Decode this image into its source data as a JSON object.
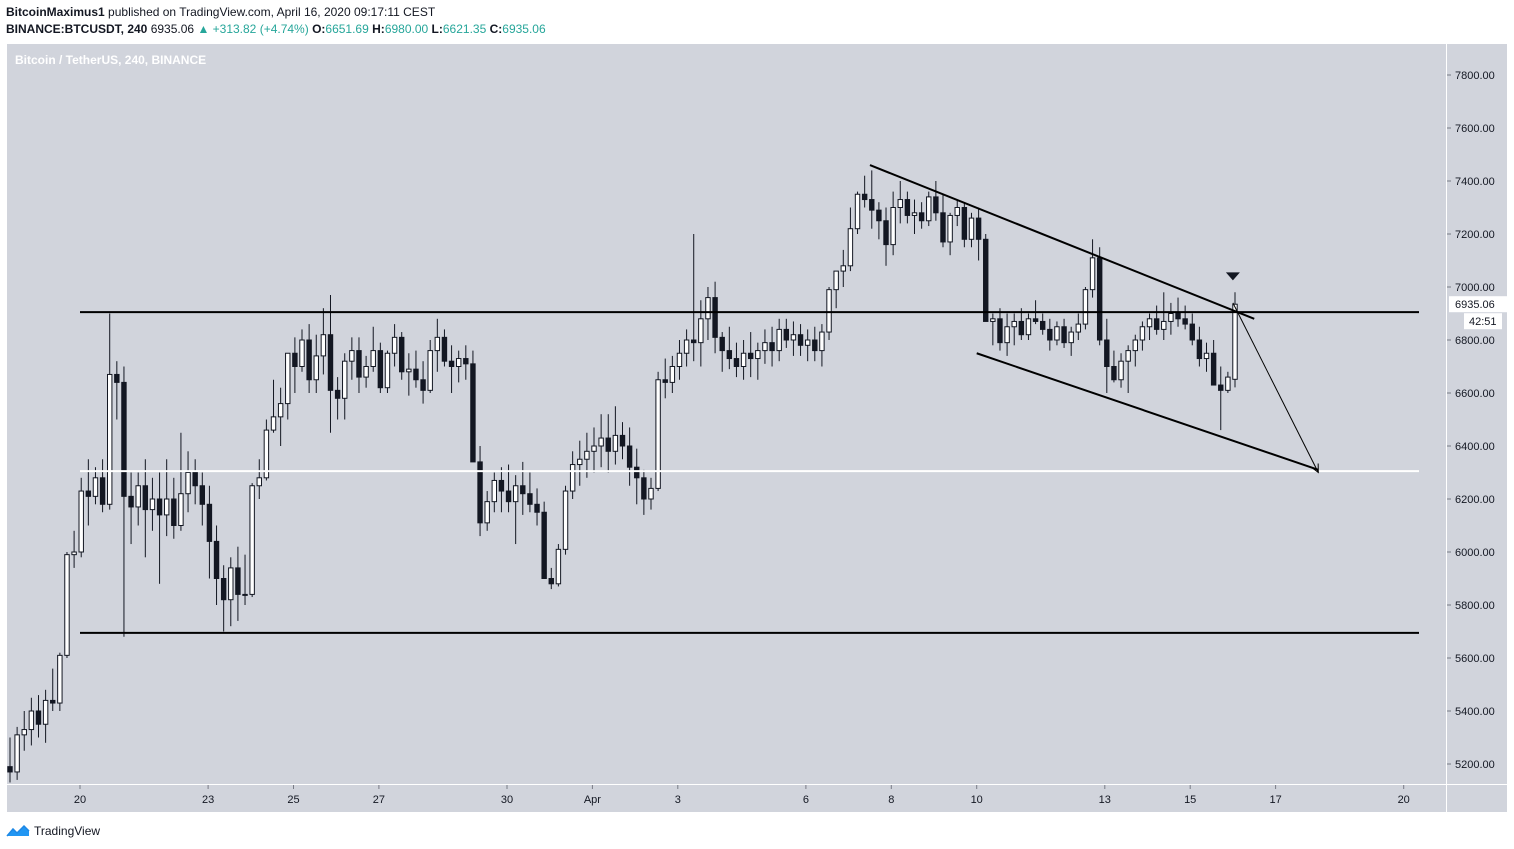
{
  "header": {
    "author": "BitcoinMaximus1",
    "published": "published on TradingView.com, April 16, 2020 09:17:11 CEST",
    "symbol": "BINANCE:BTCUSDT, 240",
    "last": "6935.06",
    "change": "▲ +313.82 (+4.74%)",
    "o_label": "O:",
    "o_val": "6651.69",
    "h_label": "H:",
    "h_val": "6980.00",
    "l_label": "L:",
    "l_val": "6621.35",
    "c_label": "C:",
    "c_val": "6935.06"
  },
  "footer": {
    "brand": "TradingView",
    "logo_icon": "tradingview-logo-icon"
  },
  "colors": {
    "pane_bg": "#d1d4dc",
    "up_body": "#ffffff",
    "down_body": "#131722",
    "accent": "#26a69a",
    "line": "#000000",
    "support_white": "#ffffff"
  },
  "chart_data": {
    "type": "candlestick",
    "title": "Bitcoin / TetherUS, 240, BINANCE",
    "xlabel": "",
    "ylabel": "",
    "ylim": [
      5100,
      7900
    ],
    "y_ticks": [
      "5200.00",
      "5400.00",
      "5600.00",
      "5800.00",
      "6000.00",
      "6200.00",
      "6400.00",
      "6600.00",
      "6800.00",
      "7000.00",
      "7200.00",
      "7400.00",
      "7600.00",
      "7800.00"
    ],
    "x_ticks": [
      {
        "t": 20,
        "label": "20"
      },
      {
        "t": 23,
        "label": "23"
      },
      {
        "t": 25,
        "label": "25"
      },
      {
        "t": 27,
        "label": "27"
      },
      {
        "t": 30,
        "label": "30"
      },
      {
        "t": 32,
        "label": "Apr"
      },
      {
        "t": 34,
        "label": "3"
      },
      {
        "t": 37,
        "label": "6"
      },
      {
        "t": 39,
        "label": "8"
      },
      {
        "t": 41,
        "label": "10"
      },
      {
        "t": 44,
        "label": "13"
      },
      {
        "t": 46,
        "label": "15"
      },
      {
        "t": 48,
        "label": "17"
      },
      {
        "t": 51,
        "label": "20"
      }
    ],
    "price_label": "6935.06",
    "countdown_label": "42:51",
    "series": [
      {
        "values": [
          [
            5190,
            5300,
            5130,
            5170
          ],
          [
            5170,
            5340,
            5140,
            5310
          ],
          [
            5310,
            5400,
            5250,
            5330
          ],
          [
            5330,
            5450,
            5270,
            5400
          ],
          [
            5400,
            5460,
            5300,
            5350
          ],
          [
            5350,
            5480,
            5280,
            5440
          ],
          [
            5440,
            5560,
            5400,
            5430
          ],
          [
            5430,
            5620,
            5400,
            5610
          ],
          [
            5610,
            6000,
            5600,
            5990
          ],
          [
            5990,
            6080,
            5940,
            6000
          ],
          [
            6000,
            6280,
            5980,
            6230
          ],
          [
            6230,
            6350,
            6100,
            6210
          ],
          [
            6210,
            6320,
            6180,
            6280
          ],
          [
            6280,
            6350,
            6150,
            6180
          ],
          [
            6180,
            6900,
            6160,
            6670
          ],
          [
            6670,
            6720,
            6500,
            6640
          ],
          [
            6640,
            6700,
            5680,
            6210
          ],
          [
            6210,
            6300,
            6030,
            6170
          ],
          [
            6170,
            6300,
            6100,
            6250
          ],
          [
            6250,
            6350,
            5980,
            6160
          ],
          [
            6160,
            6280,
            6080,
            6200
          ],
          [
            6200,
            6300,
            5880,
            6140
          ],
          [
            6140,
            6350,
            6060,
            6200
          ],
          [
            6200,
            6280,
            6050,
            6100
          ],
          [
            6100,
            6450,
            6080,
            6220
          ],
          [
            6220,
            6380,
            6150,
            6300
          ],
          [
            6300,
            6350,
            6180,
            6250
          ],
          [
            6250,
            6300,
            6100,
            6180
          ],
          [
            6180,
            6250,
            5900,
            6040
          ],
          [
            6040,
            6100,
            5800,
            5900
          ],
          [
            5900,
            5950,
            5700,
            5820
          ],
          [
            5820,
            5980,
            5720,
            5940
          ],
          [
            5940,
            6020,
            5740,
            5840
          ],
          [
            5840,
            5990,
            5800,
            5840
          ],
          [
            5840,
            6260,
            5830,
            6250
          ],
          [
            6250,
            6350,
            6200,
            6280
          ],
          [
            6280,
            6500,
            6270,
            6460
          ],
          [
            6460,
            6650,
            6450,
            6510
          ],
          [
            6510,
            6620,
            6400,
            6560
          ],
          [
            6560,
            6710,
            6500,
            6750
          ],
          [
            6750,
            6810,
            6600,
            6700
          ],
          [
            6700,
            6840,
            6680,
            6800
          ],
          [
            6800,
            6860,
            6600,
            6650
          ],
          [
            6650,
            6820,
            6600,
            6740
          ],
          [
            6740,
            6920,
            6670,
            6820
          ],
          [
            6820,
            6970,
            6450,
            6610
          ],
          [
            6610,
            6660,
            6500,
            6580
          ],
          [
            6580,
            6750,
            6500,
            6720
          ],
          [
            6720,
            6810,
            6650,
            6760
          ],
          [
            6760,
            6810,
            6600,
            6660
          ],
          [
            6660,
            6740,
            6620,
            6700
          ],
          [
            6700,
            6850,
            6680,
            6760
          ],
          [
            6760,
            6790,
            6600,
            6620
          ],
          [
            6620,
            6760,
            6600,
            6750
          ],
          [
            6750,
            6860,
            6700,
            6810
          ],
          [
            6810,
            6830,
            6650,
            6680
          ],
          [
            6680,
            6750,
            6590,
            6690
          ],
          [
            6690,
            6760,
            6620,
            6650
          ],
          [
            6650,
            6720,
            6560,
            6610
          ],
          [
            6610,
            6800,
            6600,
            6760
          ],
          [
            6760,
            6880,
            6680,
            6810
          ],
          [
            6810,
            6840,
            6700,
            6720
          ],
          [
            6720,
            6780,
            6600,
            6700
          ],
          [
            6700,
            6760,
            6640,
            6730
          ],
          [
            6730,
            6780,
            6650,
            6710
          ],
          [
            6710,
            6760,
            6380,
            6340
          ],
          [
            6340,
            6400,
            6060,
            6110
          ],
          [
            6110,
            6230,
            6080,
            6190
          ],
          [
            6190,
            6300,
            6150,
            6270
          ],
          [
            6270,
            6320,
            6150,
            6230
          ],
          [
            6230,
            6330,
            6150,
            6190
          ],
          [
            6190,
            6290,
            6030,
            6250
          ],
          [
            6250,
            6340,
            6140,
            6220
          ],
          [
            6220,
            6300,
            6150,
            6180
          ],
          [
            6180,
            6240,
            6100,
            6150
          ],
          [
            6150,
            6190,
            5960,
            5900
          ],
          [
            5900,
            5940,
            5860,
            5880
          ],
          [
            5880,
            6030,
            5870,
            6010
          ],
          [
            6010,
            6250,
            5990,
            6230
          ],
          [
            6230,
            6380,
            6200,
            6330
          ],
          [
            6330,
            6420,
            6250,
            6350
          ],
          [
            6350,
            6450,
            6280,
            6380
          ],
          [
            6380,
            6470,
            6300,
            6400
          ],
          [
            6400,
            6520,
            6320,
            6430
          ],
          [
            6430,
            6520,
            6300,
            6380
          ],
          [
            6380,
            6550,
            6330,
            6440
          ],
          [
            6440,
            6490,
            6350,
            6400
          ],
          [
            6400,
            6470,
            6250,
            6320
          ],
          [
            6320,
            6390,
            6180,
            6280
          ],
          [
            6280,
            6310,
            6140,
            6200
          ],
          [
            6200,
            6280,
            6160,
            6240
          ],
          [
            6240,
            6680,
            6230,
            6650
          ],
          [
            6650,
            6730,
            6580,
            6640
          ],
          [
            6640,
            6740,
            6600,
            6700
          ],
          [
            6700,
            6800,
            6650,
            6750
          ],
          [
            6750,
            6840,
            6700,
            6800
          ],
          [
            6800,
            7200,
            6720,
            6790
          ],
          [
            6790,
            6950,
            6700,
            6880
          ],
          [
            6880,
            7000,
            6800,
            6960
          ],
          [
            6960,
            7020,
            6750,
            6810
          ],
          [
            6810,
            6830,
            6680,
            6760
          ],
          [
            6760,
            6850,
            6690,
            6730
          ],
          [
            6730,
            6790,
            6660,
            6700
          ],
          [
            6700,
            6800,
            6650,
            6750
          ],
          [
            6750,
            6830,
            6660,
            6730
          ],
          [
            6730,
            6790,
            6650,
            6760
          ],
          [
            6760,
            6840,
            6710,
            6790
          ],
          [
            6790,
            6850,
            6700,
            6760
          ],
          [
            6760,
            6880,
            6720,
            6840
          ],
          [
            6840,
            6880,
            6770,
            6800
          ],
          [
            6800,
            6870,
            6740,
            6820
          ],
          [
            6820,
            6860,
            6740,
            6780
          ],
          [
            6780,
            6840,
            6720,
            6800
          ],
          [
            6800,
            6850,
            6720,
            6760
          ],
          [
            6760,
            6860,
            6700,
            6830
          ],
          [
            6830,
            7000,
            6800,
            6990
          ],
          [
            6990,
            7060,
            6920,
            7060
          ],
          [
            7060,
            7140,
            7000,
            7080
          ],
          [
            7080,
            7300,
            7060,
            7220
          ],
          [
            7220,
            7360,
            7200,
            7350
          ],
          [
            7350,
            7420,
            7300,
            7330
          ],
          [
            7330,
            7440,
            7220,
            7290
          ],
          [
            7290,
            7320,
            7180,
            7250
          ],
          [
            7250,
            7300,
            7080,
            7160
          ],
          [
            7160,
            7360,
            7120,
            7300
          ],
          [
            7300,
            7400,
            7240,
            7330
          ],
          [
            7330,
            7360,
            7240,
            7270
          ],
          [
            7270,
            7330,
            7200,
            7280
          ],
          [
            7280,
            7320,
            7220,
            7250
          ],
          [
            7250,
            7360,
            7230,
            7340
          ],
          [
            7340,
            7400,
            7250,
            7280
          ],
          [
            7280,
            7350,
            7150,
            7170
          ],
          [
            7170,
            7280,
            7120,
            7270
          ],
          [
            7270,
            7330,
            7230,
            7300
          ],
          [
            7300,
            7320,
            7150,
            7180
          ],
          [
            7180,
            7280,
            7150,
            7260
          ],
          [
            7260,
            7300,
            7100,
            7180
          ],
          [
            7180,
            7200,
            6880,
            6870
          ],
          [
            6870,
            6900,
            6780,
            6880
          ],
          [
            6880,
            6920,
            6760,
            6790
          ],
          [
            6790,
            6900,
            6740,
            6850
          ],
          [
            6850,
            6900,
            6780,
            6870
          ],
          [
            6870,
            6920,
            6800,
            6820
          ],
          [
            6820,
            6900,
            6800,
            6880
          ],
          [
            6880,
            6950,
            6860,
            6870
          ],
          [
            6870,
            6900,
            6820,
            6840
          ],
          [
            6840,
            6880,
            6760,
            6800
          ],
          [
            6800,
            6870,
            6780,
            6850
          ],
          [
            6850,
            6880,
            6770,
            6790
          ],
          [
            6790,
            6850,
            6740,
            6830
          ],
          [
            6830,
            6900,
            6800,
            6860
          ],
          [
            6860,
            7000,
            6840,
            6990
          ],
          [
            6990,
            7180,
            6960,
            7110
          ],
          [
            7110,
            7150,
            6780,
            6800
          ],
          [
            6800,
            6880,
            6600,
            6700
          ],
          [
            6700,
            6760,
            6640,
            6650
          ],
          [
            6650,
            6750,
            6620,
            6720
          ],
          [
            6720,
            6780,
            6600,
            6760
          ],
          [
            6760,
            6820,
            6700,
            6800
          ],
          [
            6800,
            6870,
            6760,
            6850
          ],
          [
            6850,
            6900,
            6800,
            6880
          ],
          [
            6880,
            6930,
            6820,
            6840
          ],
          [
            6840,
            6980,
            6800,
            6870
          ],
          [
            6870,
            6940,
            6820,
            6900
          ],
          [
            6900,
            6960,
            6850,
            6880
          ],
          [
            6880,
            6930,
            6840,
            6860
          ],
          [
            6860,
            6900,
            6780,
            6800
          ],
          [
            6800,
            6850,
            6700,
            6730
          ],
          [
            6730,
            6790,
            6680,
            6750
          ],
          [
            6750,
            6800,
            6630,
            6630
          ],
          [
            6630,
            6700,
            6460,
            6610
          ],
          [
            6610,
            6680,
            6600,
            6660
          ],
          [
            6651.69,
            6980,
            6621.35,
            6935.06
          ]
        ]
      }
    ],
    "annotations": [
      {
        "type": "hline",
        "price": 6905,
        "from_t": 20,
        "label": "range-resistance"
      },
      {
        "type": "hline",
        "price": 5695,
        "from_t": 20,
        "label": "range-support"
      },
      {
        "type": "hline",
        "price": 6305,
        "from_t": 20,
        "color": "white",
        "label": "support"
      },
      {
        "type": "channel-upper",
        "from": [
          38.5,
          7460
        ],
        "to": [
          47.5,
          6880
        ]
      },
      {
        "type": "channel-lower",
        "from": [
          41.0,
          6750
        ],
        "to": [
          49.0,
          6310
        ]
      },
      {
        "type": "arrow",
        "from": [
          47.0,
          6940
        ],
        "to": [
          49.0,
          6300
        ]
      },
      {
        "type": "marker",
        "shape": "triangle-down",
        "at": [
          47.0,
          7040
        ]
      }
    ]
  }
}
